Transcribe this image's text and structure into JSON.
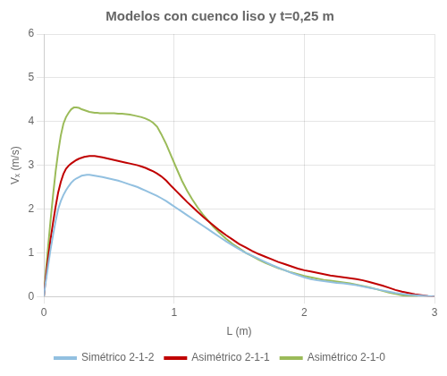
{
  "chart_data": {
    "type": "line",
    "title": "Modelos con cuenco liso y t=0,25 m",
    "xlabel": "L (m)",
    "ylabel": "Vₓ (m/s)",
    "xlim": [
      0,
      3
    ],
    "ylim": [
      0,
      6
    ],
    "xticks": [
      0,
      1,
      2,
      3
    ],
    "yticks": [
      0,
      1,
      2,
      3,
      4,
      5,
      6
    ],
    "grid": true,
    "legend": "bottom",
    "series": [
      {
        "name": "Simétrico 2-1-2",
        "color": "#92C0E0",
        "line_style": "solid",
        "x": [
          0.0,
          0.01,
          0.03,
          0.05,
          0.07,
          0.09,
          0.11,
          0.13,
          0.15,
          0.17,
          0.19,
          0.21,
          0.23,
          0.25,
          0.27,
          0.29,
          0.31,
          0.33,
          0.35,
          0.37,
          0.39,
          0.41,
          0.43,
          0.45,
          0.48,
          0.51,
          0.54,
          0.57,
          0.6,
          0.63,
          0.66,
          0.69,
          0.72,
          0.75,
          0.78,
          0.81,
          0.84,
          0.87,
          0.9,
          0.94,
          0.98,
          1.02,
          1.06,
          1.1,
          1.14,
          1.18,
          1.22,
          1.26,
          1.3,
          1.35,
          1.4,
          1.45,
          1.5,
          1.55,
          1.6,
          1.65,
          1.7,
          1.75,
          1.8,
          1.85,
          1.9,
          1.95,
          2.0,
          2.05,
          2.1,
          2.15,
          2.2,
          2.25,
          2.3,
          2.35,
          2.4,
          2.45,
          2.5,
          2.55,
          2.6,
          2.65,
          2.7,
          2.75,
          2.8,
          2.85,
          2.9,
          2.95,
          3.0
        ],
        "values": [
          0.0,
          0.25,
          0.65,
          1.05,
          1.4,
          1.72,
          2.0,
          2.18,
          2.32,
          2.43,
          2.52,
          2.6,
          2.66,
          2.7,
          2.73,
          2.76,
          2.77,
          2.78,
          2.78,
          2.77,
          2.76,
          2.75,
          2.74,
          2.73,
          2.71,
          2.69,
          2.67,
          2.65,
          2.62,
          2.59,
          2.56,
          2.53,
          2.5,
          2.46,
          2.42,
          2.38,
          2.34,
          2.3,
          2.25,
          2.18,
          2.1,
          2.02,
          1.94,
          1.86,
          1.78,
          1.7,
          1.62,
          1.54,
          1.46,
          1.36,
          1.26,
          1.17,
          1.08,
          1.0,
          0.93,
          0.86,
          0.79,
          0.72,
          0.66,
          0.6,
          0.54,
          0.49,
          0.44,
          0.4,
          0.37,
          0.35,
          0.33,
          0.31,
          0.3,
          0.28,
          0.26,
          0.23,
          0.2,
          0.17,
          0.14,
          0.11,
          0.08,
          0.06,
          0.04,
          0.03,
          0.02,
          0.01,
          0.0
        ]
      },
      {
        "name": "Asimétrico 2-1-1",
        "color": "#C00000",
        "line_style": "solid",
        "x": [
          0.0,
          0.01,
          0.03,
          0.05,
          0.07,
          0.09,
          0.11,
          0.13,
          0.15,
          0.17,
          0.19,
          0.21,
          0.23,
          0.25,
          0.27,
          0.29,
          0.31,
          0.33,
          0.35,
          0.37,
          0.39,
          0.41,
          0.43,
          0.45,
          0.48,
          0.51,
          0.54,
          0.57,
          0.6,
          0.63,
          0.66,
          0.69,
          0.72,
          0.75,
          0.78,
          0.81,
          0.84,
          0.87,
          0.9,
          0.94,
          0.98,
          1.02,
          1.06,
          1.1,
          1.14,
          1.18,
          1.22,
          1.26,
          1.3,
          1.35,
          1.4,
          1.45,
          1.5,
          1.55,
          1.6,
          1.65,
          1.7,
          1.75,
          1.8,
          1.85,
          1.9,
          1.95,
          2.0,
          2.05,
          2.1,
          2.15,
          2.2,
          2.25,
          2.3,
          2.35,
          2.4,
          2.45,
          2.5,
          2.55,
          2.6,
          2.65,
          2.7,
          2.75,
          2.8,
          2.85,
          2.9,
          2.95,
          3.0
        ],
        "values": [
          0.0,
          0.3,
          0.8,
          1.28,
          1.68,
          2.05,
          2.38,
          2.62,
          2.8,
          2.92,
          2.99,
          3.04,
          3.08,
          3.12,
          3.15,
          3.17,
          3.19,
          3.2,
          3.21,
          3.21,
          3.21,
          3.2,
          3.19,
          3.18,
          3.16,
          3.14,
          3.12,
          3.1,
          3.08,
          3.06,
          3.04,
          3.02,
          3.0,
          2.97,
          2.94,
          2.9,
          2.86,
          2.81,
          2.75,
          2.65,
          2.52,
          2.4,
          2.28,
          2.16,
          2.05,
          1.94,
          1.83,
          1.73,
          1.63,
          1.51,
          1.4,
          1.3,
          1.2,
          1.12,
          1.04,
          0.97,
          0.91,
          0.85,
          0.79,
          0.74,
          0.69,
          0.64,
          0.6,
          0.57,
          0.54,
          0.51,
          0.48,
          0.46,
          0.44,
          0.42,
          0.4,
          0.37,
          0.33,
          0.29,
          0.25,
          0.2,
          0.15,
          0.11,
          0.08,
          0.05,
          0.03,
          0.01,
          0.0
        ]
      },
      {
        "name": "Asimétrico 2-1-0",
        "color": "#9BBB59",
        "line_style": "solid",
        "x": [
          0.0,
          0.01,
          0.03,
          0.05,
          0.07,
          0.09,
          0.11,
          0.13,
          0.15,
          0.17,
          0.19,
          0.21,
          0.23,
          0.25,
          0.27,
          0.29,
          0.31,
          0.33,
          0.35,
          0.37,
          0.39,
          0.41,
          0.43,
          0.45,
          0.48,
          0.51,
          0.54,
          0.57,
          0.6,
          0.63,
          0.66,
          0.69,
          0.72,
          0.75,
          0.78,
          0.81,
          0.84,
          0.87,
          0.9,
          0.94,
          0.98,
          1.02,
          1.06,
          1.1,
          1.14,
          1.18,
          1.22,
          1.26,
          1.3,
          1.35,
          1.4,
          1.45,
          1.5,
          1.55,
          1.6,
          1.65,
          1.7,
          1.75,
          1.8,
          1.85,
          1.9,
          1.95,
          2.0,
          2.05,
          2.1,
          2.15,
          2.2,
          2.25,
          2.3,
          2.35,
          2.4,
          2.45,
          2.5,
          2.55,
          2.6,
          2.65,
          2.7,
          2.75,
          2.8,
          2.85,
          2.87
        ],
        "values": [
          0.0,
          0.4,
          1.05,
          1.7,
          2.3,
          2.85,
          3.3,
          3.68,
          3.95,
          4.1,
          4.2,
          4.28,
          4.32,
          4.32,
          4.31,
          4.28,
          4.26,
          4.24,
          4.22,
          4.21,
          4.2,
          4.2,
          4.19,
          4.19,
          4.19,
          4.19,
          4.19,
          4.18,
          4.18,
          4.17,
          4.16,
          4.14,
          4.12,
          4.1,
          4.07,
          4.03,
          3.97,
          3.88,
          3.72,
          3.48,
          3.2,
          2.92,
          2.65,
          2.42,
          2.22,
          2.04,
          1.88,
          1.74,
          1.6,
          1.45,
          1.32,
          1.2,
          1.1,
          1.0,
          0.92,
          0.84,
          0.77,
          0.71,
          0.65,
          0.6,
          0.55,
          0.51,
          0.47,
          0.44,
          0.41,
          0.38,
          0.36,
          0.34,
          0.32,
          0.3,
          0.27,
          0.24,
          0.21,
          0.17,
          0.13,
          0.09,
          0.06,
          0.03,
          0.01,
          0.0,
          0.0
        ]
      }
    ]
  }
}
